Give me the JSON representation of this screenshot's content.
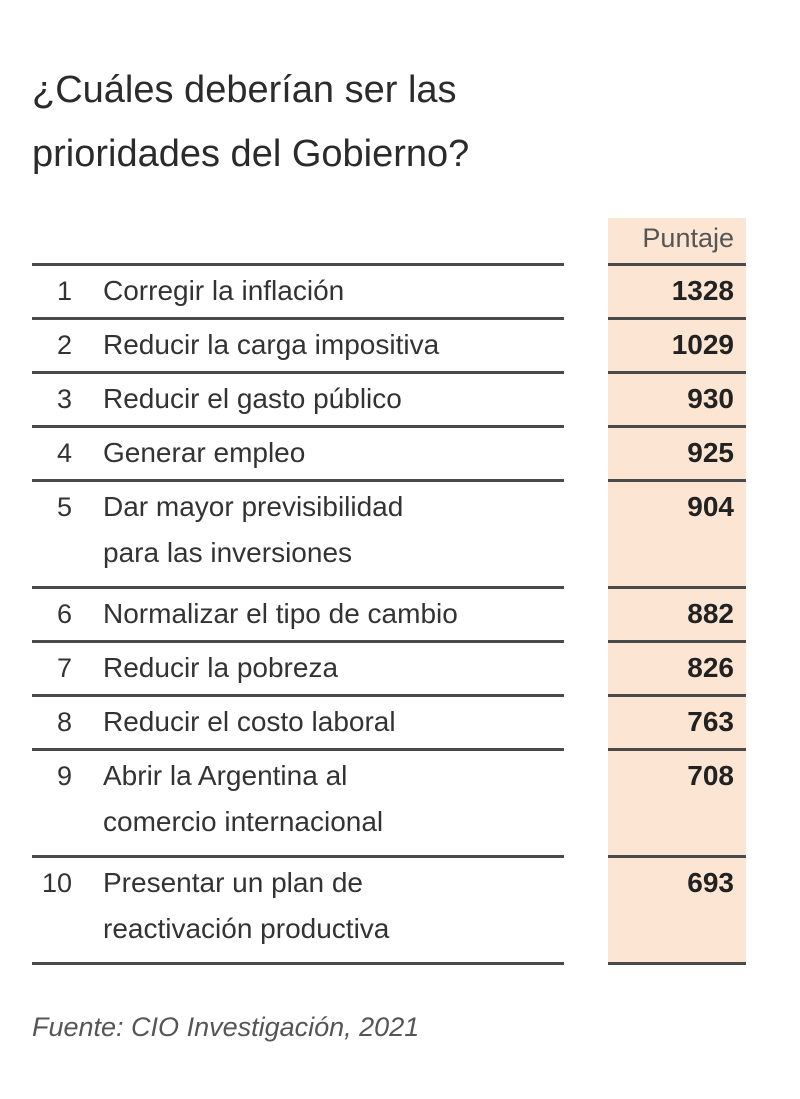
{
  "chart_data": {
    "type": "table",
    "title": "¿Cuáles deberían ser las prioridades del Gobierno?",
    "title_lines": [
      "¿Cuáles deberían ser las",
      "prioridades del Gobierno?"
    ],
    "column_header": "Puntaje",
    "rows": [
      {
        "rank": "1",
        "label": [
          "Corregir la inflación"
        ],
        "value": "1328"
      },
      {
        "rank": "2",
        "label": [
          "Reducir la carga impositiva"
        ],
        "value": "1029"
      },
      {
        "rank": "3",
        "label": [
          "Reducir el gasto público"
        ],
        "value": "930"
      },
      {
        "rank": "4",
        "label": [
          "Generar empleo"
        ],
        "value": "925"
      },
      {
        "rank": "5",
        "label": [
          "Dar mayor previsibilidad",
          "para las inversiones"
        ],
        "value": "904"
      },
      {
        "rank": "6",
        "label": [
          "Normalizar el tipo de cambio"
        ],
        "value": "882"
      },
      {
        "rank": "7",
        "label": [
          "Reducir la pobreza"
        ],
        "value": "826"
      },
      {
        "rank": "8",
        "label": [
          "Reducir el costo laboral"
        ],
        "value": "763"
      },
      {
        "rank": "9",
        "label": [
          "Abrir la Argentina al",
          "comercio internacional"
        ],
        "value": "708"
      },
      {
        "rank": "10",
        "label": [
          "Presentar un plan de",
          "reactivación productiva"
        ],
        "value": "693"
      }
    ],
    "source": "Fuente: CIO Investigación, 2021",
    "colors": {
      "highlight": "#fde5d3",
      "rule": "#4a4a4a"
    }
  }
}
